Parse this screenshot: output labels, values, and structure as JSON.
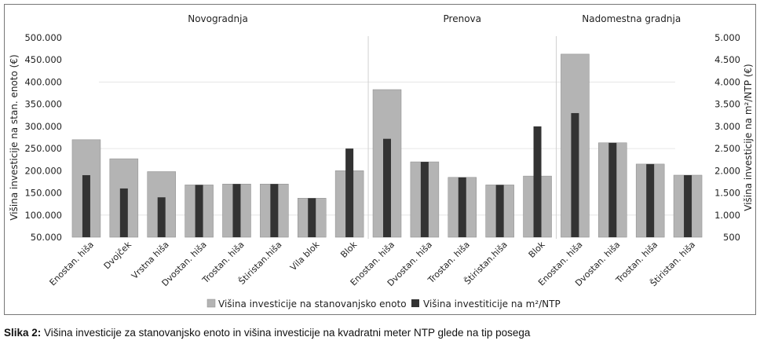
{
  "caption": {
    "label": "Slika 2:",
    "text": " Višina investicije za stanovanjsko enoto in višina investicije na kvadratni meter NTP glede na tip posega"
  },
  "chart_data": {
    "type": "bar",
    "groups": [
      {
        "label": "Novogradnja",
        "count": 8
      },
      {
        "label": "Prenova",
        "count": 5
      },
      {
        "label": "Nadomestna gradnja",
        "count": 4
      }
    ],
    "categories": [
      "Enostan. hiša",
      "Dvojček",
      "Vrstna hiša",
      "Dvostan. hiša",
      "Trostan. hiša",
      "Štiristan.hiša",
      "Vila blok",
      "Blok",
      "Enostan. hiša",
      "Dvostan. hiša",
      "Trostan. hiša",
      "Štiristan.hiša",
      "Blok",
      "Enostan. hiša",
      "Dvostan. hiša",
      "Trostan. hiša",
      "Štiristan. hiša"
    ],
    "series": [
      {
        "name": "Višina investicije na stanovanjsko enoto",
        "axis": "left",
        "color": "#b4b4b4",
        "values": [
          270000,
          227000,
          198000,
          168000,
          170000,
          170000,
          138000,
          200000,
          383000,
          220000,
          185000,
          168000,
          188000,
          463000,
          263000,
          215000,
          190000
        ]
      },
      {
        "name": "Višina investiticije na m²/NTP",
        "axis": "right",
        "color": "#333333",
        "values": [
          1900,
          1600,
          1400,
          1680,
          1700,
          1700,
          1380,
          2500,
          2720,
          2200,
          1850,
          1680,
          3000,
          3300,
          2630,
          2150,
          1900
        ]
      }
    ],
    "y_left": {
      "label": "Višina investicije na stan. enoto (€)",
      "min": 50000,
      "max": 500000,
      "ticks": [
        "500.000",
        "450.000",
        "400.000",
        "350.000",
        "300.000",
        "250.000",
        "200.000",
        "150.000",
        "100.000",
        "50.000"
      ]
    },
    "y_right": {
      "label": "Višina investicije na m²/NTP (€)",
      "min": 500,
      "max": 5000,
      "ticks": [
        "5.000",
        "4.500",
        "4.000",
        "3.500",
        "3.000",
        "2.500",
        "2.000",
        "1.500",
        "1.000",
        "500"
      ]
    },
    "legend_position": "bottom"
  }
}
